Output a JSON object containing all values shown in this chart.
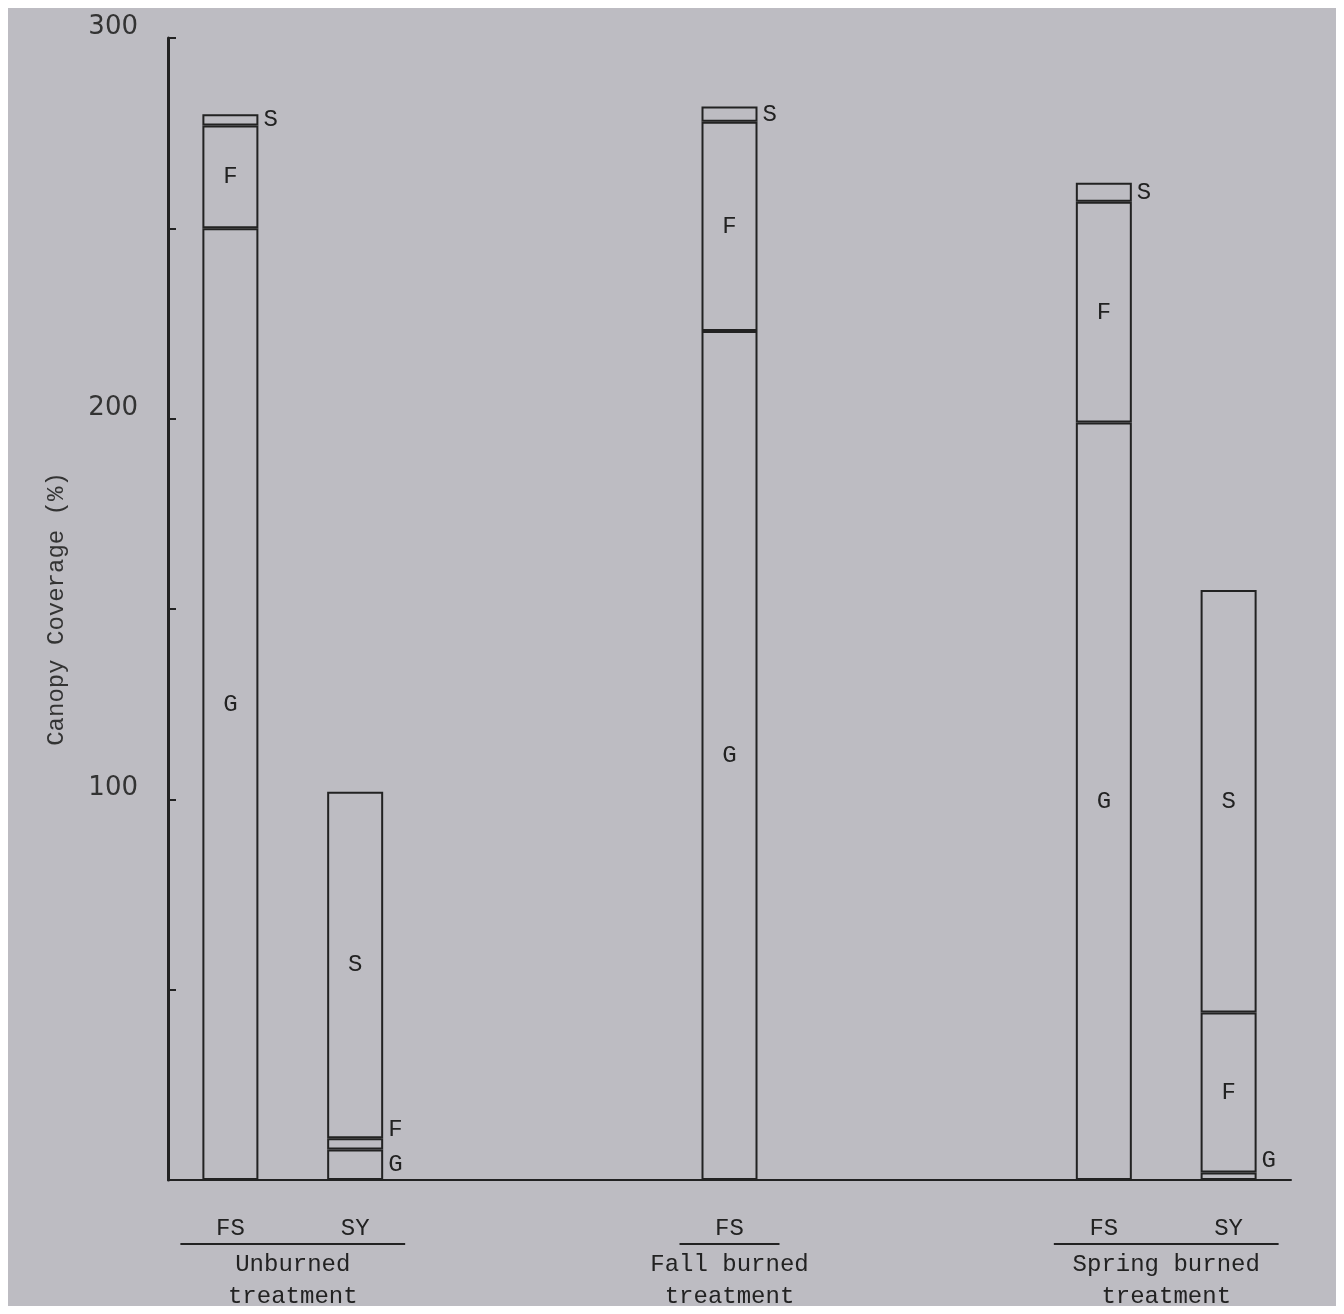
{
  "chart_data": {
    "type": "bar",
    "stacked": true,
    "legend": false,
    "grid": false,
    "ylabel": "Canopy Coverage (%)",
    "categories": [
      "FS",
      "SY",
      null,
      null,
      "FS",
      null,
      null,
      "FS",
      "SY"
    ],
    "series": [
      {
        "name": "G",
        "color": "#bdbcc2",
        "values": [
          250,
          8,
          null,
          null,
          223,
          null,
          null,
          199,
          2
        ]
      },
      {
        "name": "F",
        "color": "#bdbcc2",
        "values": [
          27,
          3,
          null,
          null,
          55,
          null,
          null,
          58,
          42
        ]
      },
      {
        "name": "S",
        "color": "#bdbcc2",
        "values": [
          3,
          91,
          null,
          null,
          4,
          null,
          null,
          5,
          111
        ]
      }
    ],
    "ylim": [
      0,
      300
    ],
    "yticks": [
      {
        "value": 50,
        "label": null
      },
      100,
      {
        "value": 150,
        "label": null
      },
      200,
      {
        "value": 250,
        "label": null
      },
      300
    ],
    "annotations": [
      "Unburned\ntreatment",
      "Fall burned\ntreatment",
      "Spring burned\ntreatment"
    ]
  }
}
